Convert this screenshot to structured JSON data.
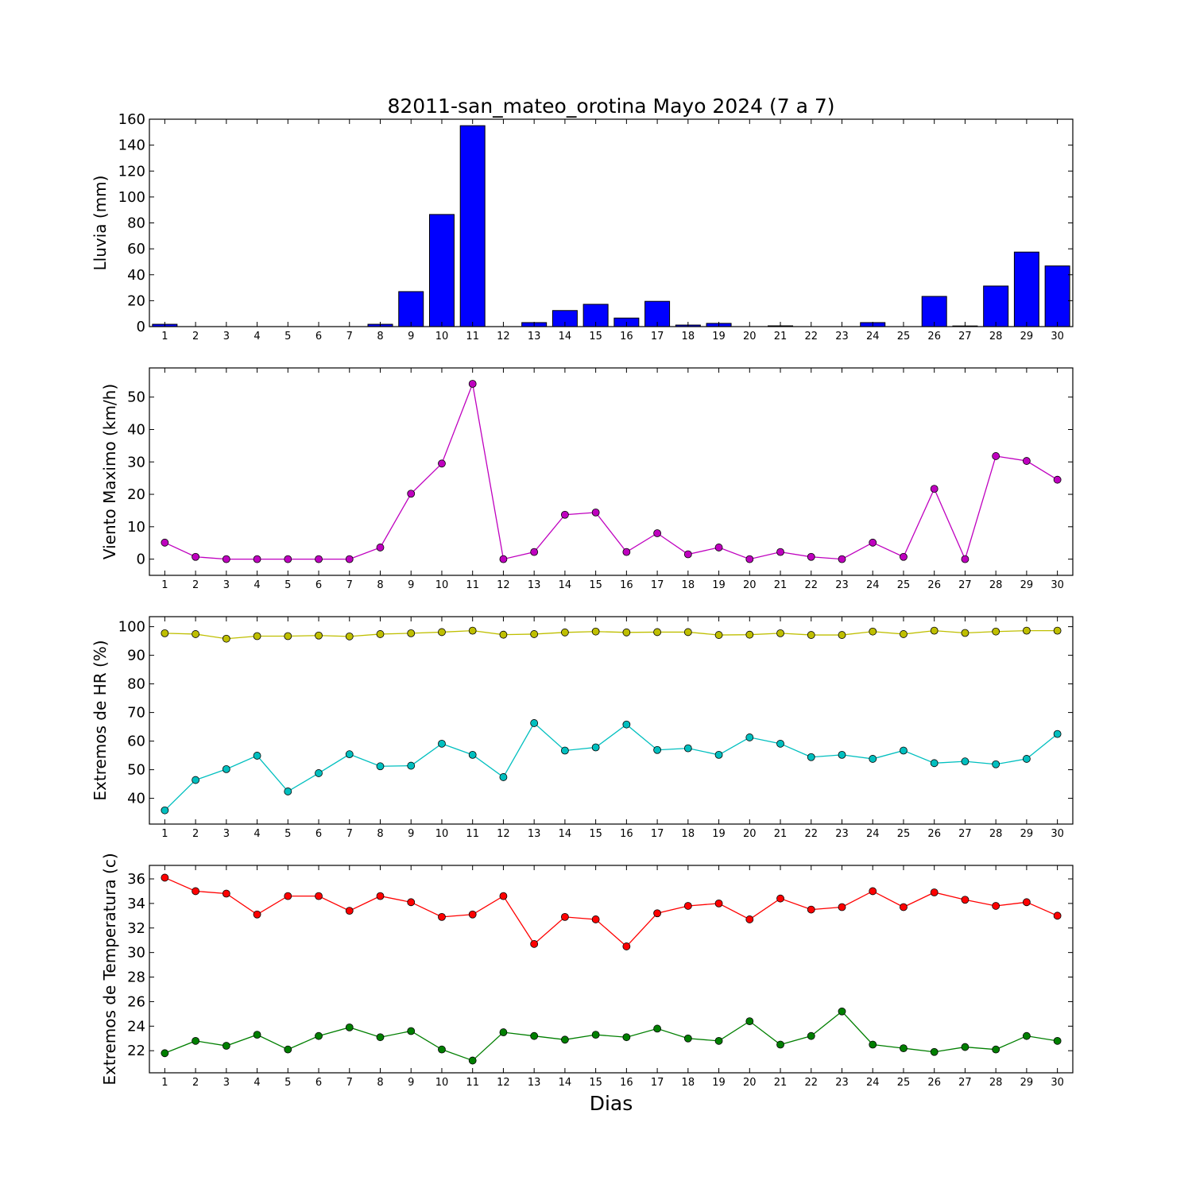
{
  "chart_data": [
    {
      "type": "bar",
      "title": "82011-san_mateo_orotina Mayo 2024  (7 a 7)",
      "xlabel": "",
      "ylabel": "Lluvia (mm)",
      "ylim": [
        0,
        160
      ],
      "yticks": [
        0,
        20,
        40,
        60,
        80,
        100,
        120,
        140,
        160
      ],
      "categories": [
        "1",
        "2",
        "3",
        "4",
        "5",
        "6",
        "7",
        "8",
        "9",
        "10",
        "11",
        "12",
        "13",
        "14",
        "15",
        "16",
        "17",
        "18",
        "19",
        "20",
        "21",
        "22",
        "23",
        "24",
        "25",
        "26",
        "27",
        "28",
        "29",
        "30"
      ],
      "values": [
        1.8,
        0,
        0,
        0,
        0,
        0,
        0,
        1.8,
        27,
        86.5,
        155,
        0,
        3.1,
        12.4,
        17.2,
        6.6,
        19.5,
        1.2,
        2.5,
        0,
        0.6,
        0,
        0,
        3.1,
        0,
        23.3,
        0.5,
        31.3,
        57.5,
        46.8
      ],
      "colors": {
        "bar": "#0000ff"
      }
    },
    {
      "type": "line",
      "title": "",
      "xlabel": "",
      "ylabel": "Viento Maximo (km/h)",
      "ylim": [
        -5,
        59
      ],
      "yticks": [
        0,
        10,
        20,
        30,
        40,
        50
      ],
      "categories": [
        "1",
        "2",
        "3",
        "4",
        "5",
        "6",
        "7",
        "8",
        "9",
        "10",
        "11",
        "12",
        "13",
        "14",
        "15",
        "16",
        "17",
        "18",
        "19",
        "20",
        "21",
        "22",
        "23",
        "24",
        "25",
        "26",
        "27",
        "28",
        "29",
        "30"
      ],
      "series": [
        {
          "values": [
            5.1,
            0.7,
            0,
            0,
            0,
            0,
            0,
            3.6,
            20.2,
            29.5,
            54.1,
            0,
            2.2,
            13.7,
            14.4,
            2.2,
            8,
            1.5,
            3.6,
            0,
            2.2,
            0.7,
            0,
            5.1,
            0.7,
            21.7,
            0,
            31.8,
            30.3,
            24.5
          ],
          "color": "#bf00bf"
        }
      ]
    },
    {
      "type": "line",
      "title": "",
      "xlabel": "",
      "ylabel": "Extremos de HR (%)",
      "ylim": [
        31,
        103.5
      ],
      "yticks": [
        40,
        50,
        60,
        70,
        80,
        90,
        100
      ],
      "categories": [
        "1",
        "2",
        "3",
        "4",
        "5",
        "6",
        "7",
        "8",
        "9",
        "10",
        "11",
        "12",
        "13",
        "14",
        "15",
        "16",
        "17",
        "18",
        "19",
        "20",
        "21",
        "22",
        "23",
        "24",
        "25",
        "26",
        "27",
        "28",
        "29",
        "30"
      ],
      "series": [
        {
          "values": [
            97.7,
            97.4,
            95.8,
            96.7,
            96.7,
            96.9,
            96.6,
            97.4,
            97.7,
            98.1,
            98.6,
            97.2,
            97.4,
            98,
            98.3,
            98,
            98.1,
            98.1,
            97.1,
            97.2,
            97.7,
            97.1,
            97.1,
            98.3,
            97.4,
            98.6,
            97.8,
            98.3,
            98.6,
            98.6
          ],
          "color": "#bfbf00"
        },
        {
          "values": [
            35.8,
            46.4,
            50.2,
            54.9,
            42.4,
            48.8,
            55.4,
            51.2,
            51.4,
            59.1,
            55.2,
            47.4,
            66.3,
            56.7,
            57.8,
            65.8,
            56.9,
            57.5,
            55.2,
            61.3,
            59.1,
            54.4,
            55.2,
            53.8,
            56.7,
            52.3,
            52.9,
            51.9,
            53.8,
            62.5
          ],
          "color": "#00bfbf"
        }
      ]
    },
    {
      "type": "line",
      "title": "",
      "xlabel": "Dias",
      "ylabel": "Extremos de Temperatura (c)",
      "ylim": [
        20.2,
        37.1
      ],
      "yticks": [
        22,
        24,
        26,
        28,
        30,
        32,
        34,
        36
      ],
      "categories": [
        "1",
        "2",
        "3",
        "4",
        "5",
        "6",
        "7",
        "8",
        "9",
        "10",
        "11",
        "12",
        "13",
        "14",
        "15",
        "16",
        "17",
        "18",
        "19",
        "20",
        "21",
        "22",
        "23",
        "24",
        "25",
        "26",
        "27",
        "28",
        "29",
        "30"
      ],
      "series": [
        {
          "values": [
            36.1,
            35,
            34.8,
            33.1,
            34.6,
            34.6,
            33.4,
            34.6,
            34.1,
            32.9,
            33.1,
            34.6,
            30.7,
            32.9,
            32.7,
            30.5,
            33.2,
            33.8,
            34,
            32.7,
            34.4,
            33.5,
            33.7,
            35,
            33.7,
            34.9,
            34.3,
            33.8,
            34.1,
            33
          ],
          "color": "#ff0000"
        },
        {
          "values": [
            21.8,
            22.8,
            22.4,
            23.3,
            22.1,
            23.2,
            23.9,
            23.1,
            23.6,
            22.1,
            21.2,
            23.5,
            23.2,
            22.9,
            23.3,
            23.1,
            23.8,
            23,
            22.8,
            24.4,
            22.5,
            23.2,
            25.2,
            22.5,
            22.2,
            21.9,
            22.3,
            22.1,
            23.2,
            22.8
          ],
          "color": "#007f00"
        }
      ]
    }
  ]
}
